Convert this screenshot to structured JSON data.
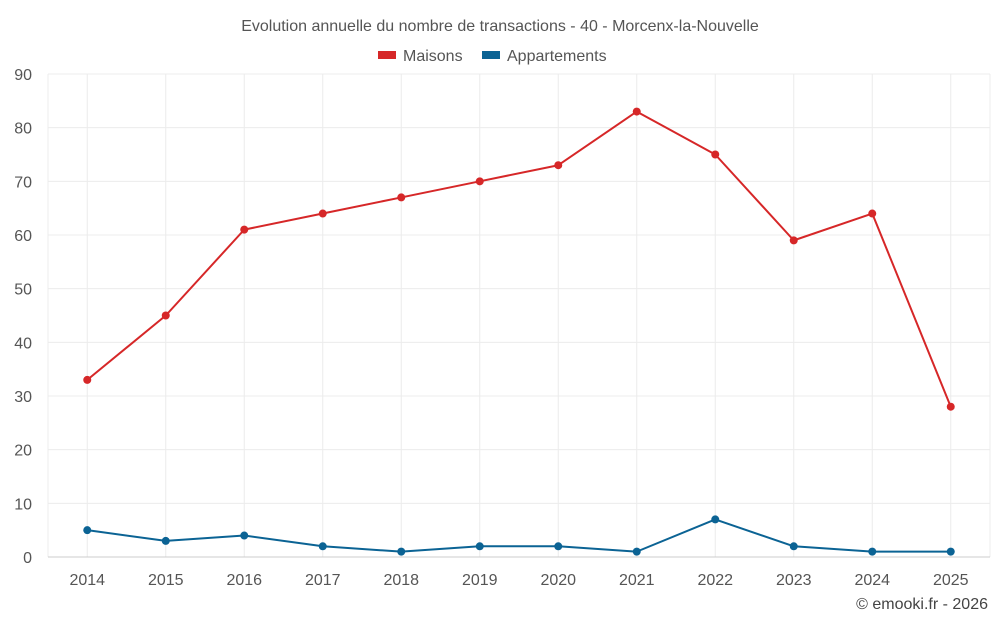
{
  "chart_data": {
    "type": "line",
    "title": "Evolution annuelle du nombre de transactions - 40 - Morcenx-la-Nouvelle",
    "categories": [
      "2014",
      "2015",
      "2016",
      "2017",
      "2018",
      "2019",
      "2020",
      "2021",
      "2022",
      "2023",
      "2024",
      "2025"
    ],
    "series": [
      {
        "name": "Maisons",
        "color": "#d62728",
        "values": [
          33,
          45,
          61,
          64,
          67,
          70,
          73,
          83,
          75,
          59,
          64,
          28
        ]
      },
      {
        "name": "Appartements",
        "color": "#0b6394",
        "values": [
          5,
          3,
          4,
          2,
          1,
          2,
          2,
          1,
          7,
          2,
          1,
          1
        ]
      }
    ],
    "ylim": [
      0,
      90
    ],
    "yticks": [
      "0",
      "10",
      "20",
      "30",
      "40",
      "50",
      "60",
      "70",
      "80",
      "90"
    ],
    "grid": true,
    "legend": "top-center",
    "xlabel": "",
    "ylabel": ""
  },
  "credit": "© emooki.fr - 2026"
}
